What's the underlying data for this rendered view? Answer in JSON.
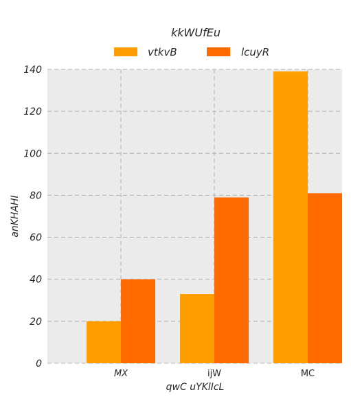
{
  "chart_data": {
    "type": "bar",
    "title": "kkWUfEu",
    "xlabel": "qwC uYKlIcL",
    "ylabel": "anKHAHI",
    "categories": [
      "MX",
      "ijW",
      "MC"
    ],
    "series": [
      {
        "name": "vtkvB",
        "values": [
          20,
          33,
          139
        ],
        "color": "#ff9e00"
      },
      {
        "name": "lcuyR",
        "values": [
          40,
          79,
          81
        ],
        "color": "#ff6a00"
      }
    ],
    "ylim": [
      0,
      140
    ],
    "yticks": [
      0,
      20,
      40,
      60,
      80,
      100,
      120,
      140
    ],
    "grid": true,
    "legend_position": "top-center",
    "background": "#ebebeb"
  }
}
